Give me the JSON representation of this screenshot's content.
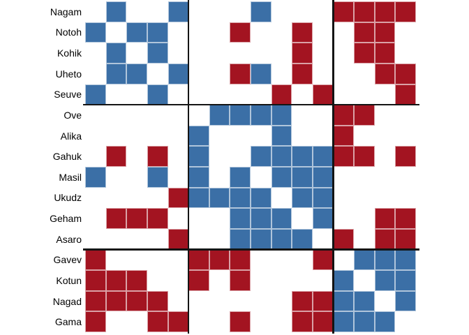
{
  "chart_data": {
    "type": "heatmap",
    "title": "",
    "row_labels": [
      "Nagam",
      "Notoh",
      "Kohik",
      "Uheto",
      "Seuve",
      "Ove",
      "Alika",
      "Gahuk",
      "Masil",
      "Ukudz",
      "Geham",
      "Asaro",
      "Gavev",
      "Kotun",
      "Nagad",
      "Gama"
    ],
    "column_labels_visible": false,
    "n_rows": 16,
    "n_cols": 16,
    "row_group_sizes": [
      5,
      7,
      4
    ],
    "col_group_sizes": [
      5,
      7,
      4
    ],
    "legend": {
      "0": "empty",
      "1": "blue",
      "2": "red"
    },
    "value_colors": {
      "0": "transparent",
      "1": "#3B6FA6",
      "2": "#A31421"
    },
    "separator_color": "#141414",
    "background_color": "#ffffff",
    "label_color": "#000000",
    "cell_values": [
      [
        0,
        1,
        0,
        0,
        1,
        0,
        0,
        0,
        1,
        0,
        0,
        0,
        2,
        2,
        2,
        2
      ],
      [
        1,
        0,
        1,
        1,
        0,
        0,
        0,
        2,
        0,
        0,
        2,
        0,
        0,
        2,
        2,
        0
      ],
      [
        0,
        1,
        0,
        1,
        0,
        0,
        0,
        0,
        0,
        0,
        2,
        0,
        0,
        2,
        2,
        0
      ],
      [
        0,
        1,
        1,
        0,
        1,
        0,
        0,
        2,
        1,
        0,
        2,
        0,
        0,
        0,
        2,
        2
      ],
      [
        1,
        0,
        0,
        1,
        0,
        0,
        0,
        0,
        0,
        2,
        0,
        2,
        0,
        0,
        0,
        2
      ],
      [
        0,
        0,
        0,
        0,
        0,
        0,
        1,
        1,
        1,
        1,
        0,
        0,
        2,
        2,
        0,
        0
      ],
      [
        0,
        0,
        0,
        0,
        0,
        1,
        0,
        0,
        0,
        1,
        0,
        0,
        2,
        0,
        0,
        0
      ],
      [
        0,
        2,
        0,
        2,
        0,
        1,
        0,
        0,
        1,
        1,
        1,
        1,
        2,
        2,
        0,
        2
      ],
      [
        1,
        0,
        0,
        1,
        0,
        1,
        0,
        1,
        0,
        1,
        1,
        1,
        0,
        0,
        0,
        0
      ],
      [
        0,
        0,
        0,
        0,
        2,
        1,
        1,
        1,
        1,
        0,
        1,
        1,
        0,
        0,
        0,
        0
      ],
      [
        0,
        2,
        2,
        2,
        0,
        0,
        0,
        1,
        1,
        1,
        0,
        1,
        0,
        0,
        2,
        2
      ],
      [
        0,
        0,
        0,
        0,
        2,
        0,
        0,
        1,
        1,
        1,
        1,
        0,
        2,
        0,
        2,
        2
      ],
      [
        2,
        0,
        0,
        0,
        0,
        2,
        2,
        2,
        0,
        0,
        0,
        2,
        0,
        1,
        1,
        1
      ],
      [
        2,
        2,
        2,
        0,
        0,
        2,
        0,
        2,
        0,
        0,
        0,
        0,
        1,
        0,
        1,
        1
      ],
      [
        2,
        2,
        2,
        2,
        0,
        0,
        0,
        0,
        0,
        0,
        2,
        2,
        1,
        1,
        0,
        1
      ],
      [
        2,
        0,
        0,
        2,
        2,
        0,
        0,
        2,
        0,
        0,
        2,
        2,
        1,
        1,
        1,
        0
      ]
    ]
  }
}
